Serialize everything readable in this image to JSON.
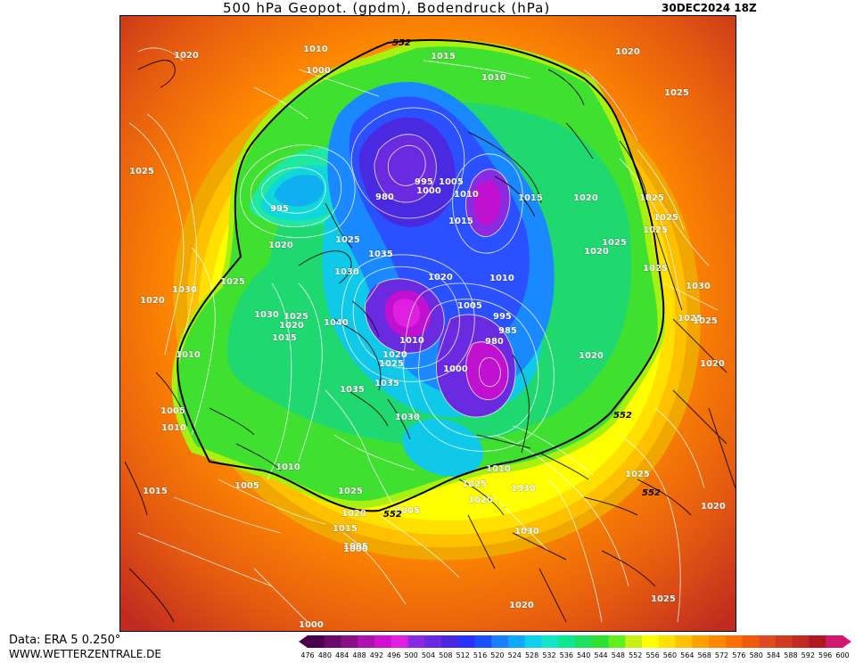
{
  "header": {
    "title": "500 hPa Geopot. (gpdm), Bodendruck (hPa)",
    "timestamp": "30DEC2024 18Z"
  },
  "footer": {
    "data_source": "Data: ERA 5 0.250°",
    "website": "WWW.WETTERZENTRALE.DE"
  },
  "legend": {
    "ticks": [
      "476",
      "480",
      "484",
      "488",
      "492",
      "496",
      "500",
      "504",
      "508",
      "512",
      "516",
      "520",
      "524",
      "528",
      "532",
      "536",
      "540",
      "544",
      "548",
      "552",
      "556",
      "560",
      "564",
      "568",
      "572",
      "576",
      "580",
      "584",
      "588",
      "592",
      "596",
      "600"
    ],
    "colors": [
      "#4a004a",
      "#6a0a6a",
      "#8a108a",
      "#b010b0",
      "#d010d0",
      "#e020e0",
      "#8a2be2",
      "#6a2ae0",
      "#4a28e0",
      "#2a30ff",
      "#1a50ff",
      "#1a80ff",
      "#10a8f8",
      "#10d0f0",
      "#10e8c8",
      "#10e890",
      "#20e060",
      "#30e030",
      "#60f020",
      "#c8f010",
      "#ffff00",
      "#ffe000",
      "#ffc000",
      "#ffa000",
      "#ff8800",
      "#ff7000",
      "#f05a10",
      "#e04a20",
      "#d03a20",
      "#c02a20",
      "#b01820",
      "#d01870"
    ]
  },
  "pressure_labels": [
    "1020",
    "1010",
    "1015",
    "1010",
    "1020",
    "1025",
    "1000",
    "1025",
    "995",
    "1005",
    "1000",
    "980",
    "1010",
    "1015",
    "1020",
    "995",
    "1015",
    "1020",
    "1025",
    "1035",
    "1020",
    "1025",
    "1025",
    "1030",
    "1030",
    "1020",
    "1025",
    "1020",
    "1030",
    "1025",
    "1040",
    "1020",
    "1005",
    "995",
    "985",
    "980",
    "1015",
    "1010",
    "1010",
    "1010",
    "1020",
    "1025",
    "1000",
    "1025",
    "1035",
    "1035",
    "1030",
    "1020",
    "1005",
    "1010",
    "1015",
    "1005",
    "1010",
    "1025",
    "1020",
    "1005",
    "1000",
    "1005",
    "1015",
    "1010",
    "1030",
    "1030",
    "1025",
    "1020",
    "1025",
    "1025",
    "1025",
    "1030",
    "1025",
    "1020",
    "1020",
    "1025",
    "1020",
    "1000",
    "1025"
  ],
  "geopotential_labels": [
    "552",
    "552",
    "552",
    "552"
  ],
  "map_layers": {
    "background_icon": "geopotential-color-field",
    "contours_icon": "surface-pressure-isobars",
    "coastlines_icon": "coastline-overlay"
  }
}
